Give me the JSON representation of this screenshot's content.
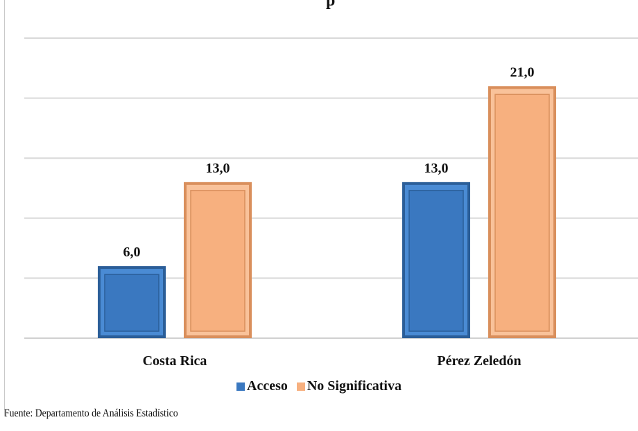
{
  "partial_title": "p",
  "chart_data": {
    "type": "bar",
    "categories": [
      "Costa Rica",
      "Pérez Zeledón"
    ],
    "series": [
      {
        "name": "Acceso",
        "values": [
          6.0,
          13.0
        ],
        "labels": [
          "6,0",
          "13,0"
        ],
        "color": "#3a78c0"
      },
      {
        "name": "No Significativa",
        "values": [
          13.0,
          21.0
        ],
        "labels": [
          "13,0",
          "21,0"
        ],
        "color": "#f7b07f"
      }
    ],
    "ylim": [
      0,
      25
    ],
    "grid": true,
    "legend": "bottom"
  },
  "source": "Fuente: Departamento de Análisis Estadístico"
}
